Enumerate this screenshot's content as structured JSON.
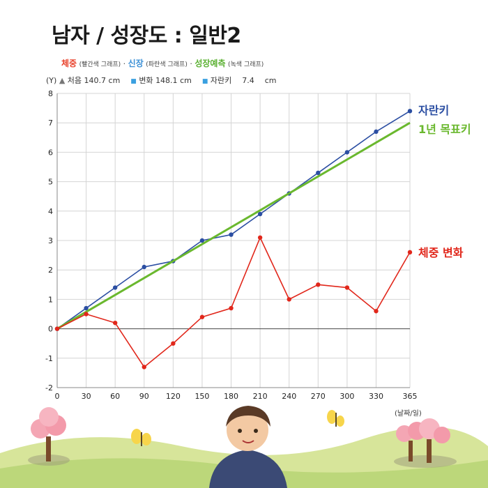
{
  "title": "남자 / 성장도 : 일반2",
  "legend": {
    "weight": {
      "name": "체중",
      "note": "(빨간색 그래프)",
      "color": "#e8412b"
    },
    "height": {
      "name": "신장",
      "note": "(파란색 그래프)",
      "color": "#3a8fd6"
    },
    "forecast": {
      "name": "성장예측",
      "note": "(녹색 그래프)",
      "color": "#5ab031"
    },
    "separator": "·"
  },
  "info": {
    "y_unit": "(Y)",
    "start_label": "처음",
    "start_value": "140.7",
    "start_unit": "cm",
    "change_label": "변화",
    "change_value": "148.1",
    "change_unit": "cm",
    "growth_label": "자란키",
    "growth_value": "7.4",
    "growth_unit": "cm"
  },
  "chart_data": {
    "type": "line",
    "x": [
      0,
      30,
      60,
      90,
      120,
      150,
      180,
      210,
      240,
      270,
      300,
      330,
      365
    ],
    "xticks": [
      0,
      30,
      60,
      90,
      120,
      150,
      180,
      210,
      240,
      270,
      300,
      330,
      365
    ],
    "xlim": [
      0,
      365
    ],
    "ylim": [
      -2,
      8
    ],
    "yticks": [
      -2,
      -1,
      0,
      1,
      2,
      3,
      4,
      5,
      6,
      7,
      8
    ],
    "xlabel": "(날짜/일)",
    "grid": true,
    "series": [
      {
        "name": "자란키",
        "color": "#2b4ea2",
        "values": [
          0,
          0.7,
          1.4,
          2.1,
          2.3,
          3.0,
          3.2,
          3.9,
          4.6,
          5.3,
          6.0,
          6.7,
          7.4
        ]
      },
      {
        "name": "1년 목표키",
        "color": "#6ab82e",
        "values": [
          0,
          7.0
        ],
        "x": [
          0,
          365
        ],
        "markers": false
      },
      {
        "name": "체중 변화",
        "color": "#e1271b",
        "values": [
          0,
          0.5,
          0.2,
          -1.3,
          -0.5,
          0.4,
          0.7,
          3.1,
          1.0,
          1.5,
          1.4,
          0.6,
          2.6
        ]
      }
    ]
  }
}
